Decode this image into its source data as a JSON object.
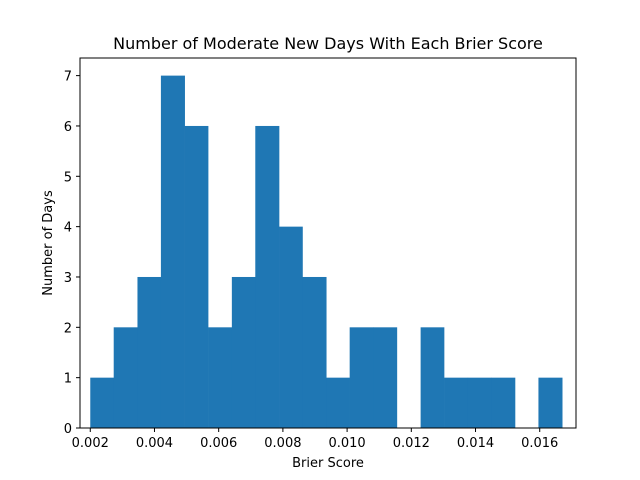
{
  "chart_data": {
    "type": "bar",
    "title": "Number of Moderate New Days With Each Brier Score",
    "xlabel": "Brier Score",
    "ylabel": "Number of Days",
    "xlim": [
      0.00168,
      0.01713
    ],
    "ylim": [
      0,
      7.35
    ],
    "bar_color": "#1f77b4",
    "bins": [
      {
        "x0": 0.002,
        "x1": 0.00273,
        "count": 1
      },
      {
        "x0": 0.00273,
        "x1": 0.00347,
        "count": 2
      },
      {
        "x0": 0.00347,
        "x1": 0.0042,
        "count": 3
      },
      {
        "x0": 0.0042,
        "x1": 0.00494,
        "count": 7
      },
      {
        "x0": 0.00494,
        "x1": 0.00567,
        "count": 6
      },
      {
        "x0": 0.00567,
        "x1": 0.00641,
        "count": 2
      },
      {
        "x0": 0.00641,
        "x1": 0.00714,
        "count": 3
      },
      {
        "x0": 0.00714,
        "x1": 0.00788,
        "count": 6
      },
      {
        "x0": 0.00788,
        "x1": 0.00861,
        "count": 4
      },
      {
        "x0": 0.00861,
        "x1": 0.00935,
        "count": 3
      },
      {
        "x0": 0.00935,
        "x1": 0.01008,
        "count": 1
      },
      {
        "x0": 0.01008,
        "x1": 0.01082,
        "count": 2
      },
      {
        "x0": 0.01082,
        "x1": 0.01155,
        "count": 2
      },
      {
        "x0": 0.01155,
        "x1": 0.01229,
        "count": 0
      },
      {
        "x0": 0.01229,
        "x1": 0.01302,
        "count": 2
      },
      {
        "x0": 0.01302,
        "x1": 0.01376,
        "count": 1
      },
      {
        "x0": 0.01376,
        "x1": 0.01449,
        "count": 1
      },
      {
        "x0": 0.01449,
        "x1": 0.01523,
        "count": 1
      },
      {
        "x0": 0.01523,
        "x1": 0.01596,
        "count": 0
      },
      {
        "x0": 0.01596,
        "x1": 0.0167,
        "count": 1
      }
    ],
    "x_ticks": [
      {
        "value": 0.002,
        "label": "0.002"
      },
      {
        "value": 0.004,
        "label": "0.004"
      },
      {
        "value": 0.006,
        "label": "0.006"
      },
      {
        "value": 0.008,
        "label": "0.008"
      },
      {
        "value": 0.01,
        "label": "0.010"
      },
      {
        "value": 0.012,
        "label": "0.012"
      },
      {
        "value": 0.014,
        "label": "0.014"
      },
      {
        "value": 0.016,
        "label": "0.016"
      }
    ],
    "y_ticks": [
      {
        "value": 0,
        "label": "0"
      },
      {
        "value": 1,
        "label": "1"
      },
      {
        "value": 2,
        "label": "2"
      },
      {
        "value": 3,
        "label": "3"
      },
      {
        "value": 4,
        "label": "4"
      },
      {
        "value": 5,
        "label": "5"
      },
      {
        "value": 6,
        "label": "6"
      },
      {
        "value": 7,
        "label": "7"
      }
    ]
  }
}
